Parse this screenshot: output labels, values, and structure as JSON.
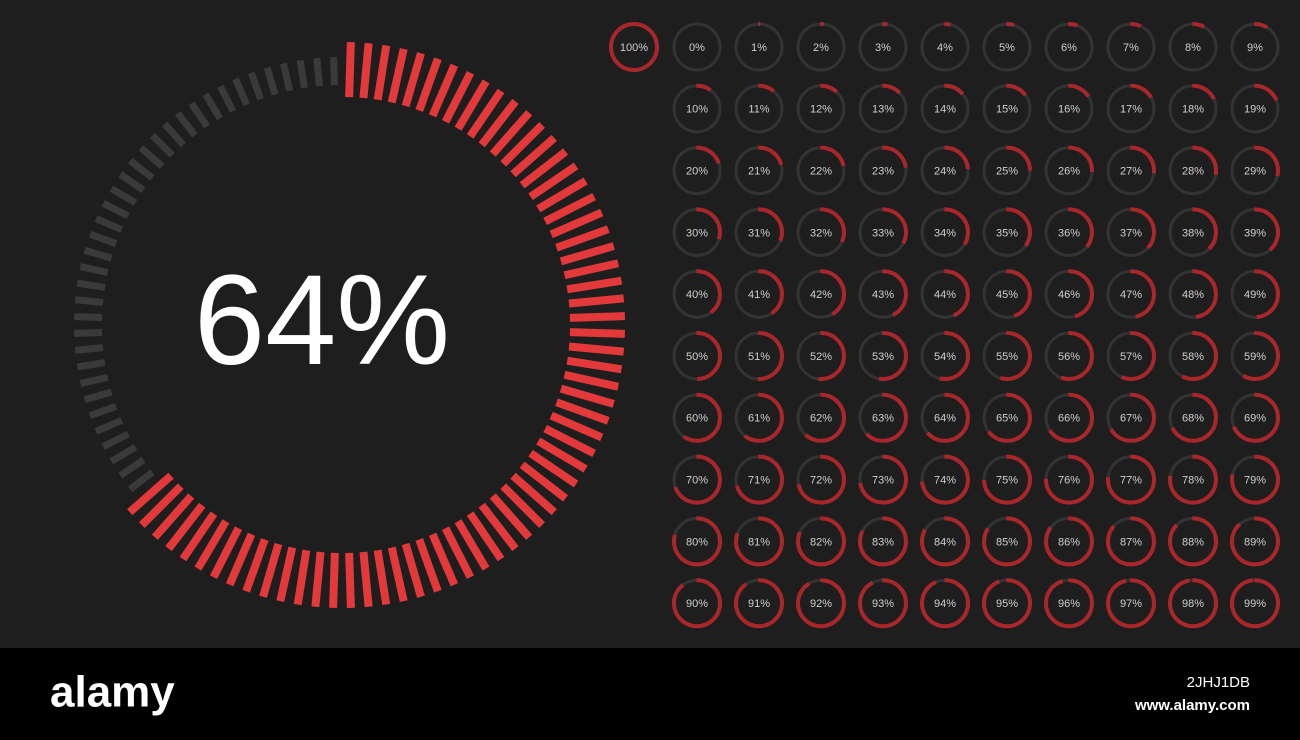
{
  "main_meter": {
    "value": 64,
    "label": "64%"
  },
  "meters": [
    {
      "value": 100,
      "label": "100%"
    },
    {
      "value": 0,
      "label": "0%"
    },
    {
      "value": 1,
      "label": "1%"
    },
    {
      "value": 2,
      "label": "2%"
    },
    {
      "value": 3,
      "label": "3%"
    },
    {
      "value": 4,
      "label": "4%"
    },
    {
      "value": 5,
      "label": "5%"
    },
    {
      "value": 6,
      "label": "6%"
    },
    {
      "value": 7,
      "label": "7%"
    },
    {
      "value": 8,
      "label": "8%"
    },
    {
      "value": 9,
      "label": "9%"
    },
    {
      "value": 10,
      "label": "10%"
    },
    {
      "value": 11,
      "label": "11%"
    },
    {
      "value": 12,
      "label": "12%"
    },
    {
      "value": 13,
      "label": "13%"
    },
    {
      "value": 14,
      "label": "14%"
    },
    {
      "value": 15,
      "label": "15%"
    },
    {
      "value": 16,
      "label": "16%"
    },
    {
      "value": 17,
      "label": "17%"
    },
    {
      "value": 18,
      "label": "18%"
    },
    {
      "value": 19,
      "label": "19%"
    },
    {
      "value": 20,
      "label": "20%"
    },
    {
      "value": 21,
      "label": "21%"
    },
    {
      "value": 22,
      "label": "22%"
    },
    {
      "value": 23,
      "label": "23%"
    },
    {
      "value": 24,
      "label": "24%"
    },
    {
      "value": 25,
      "label": "25%"
    },
    {
      "value": 26,
      "label": "26%"
    },
    {
      "value": 27,
      "label": "27%"
    },
    {
      "value": 28,
      "label": "28%"
    },
    {
      "value": 29,
      "label": "29%"
    },
    {
      "value": 30,
      "label": "30%"
    },
    {
      "value": 31,
      "label": "31%"
    },
    {
      "value": 32,
      "label": "32%"
    },
    {
      "value": 33,
      "label": "33%"
    },
    {
      "value": 34,
      "label": "34%"
    },
    {
      "value": 35,
      "label": "35%"
    },
    {
      "value": 36,
      "label": "36%"
    },
    {
      "value": 37,
      "label": "37%"
    },
    {
      "value": 38,
      "label": "38%"
    },
    {
      "value": 39,
      "label": "39%"
    },
    {
      "value": 40,
      "label": "40%"
    },
    {
      "value": 41,
      "label": "41%"
    },
    {
      "value": 42,
      "label": "42%"
    },
    {
      "value": 43,
      "label": "43%"
    },
    {
      "value": 44,
      "label": "44%"
    },
    {
      "value": 45,
      "label": "45%"
    },
    {
      "value": 46,
      "label": "46%"
    },
    {
      "value": 47,
      "label": "47%"
    },
    {
      "value": 48,
      "label": "48%"
    },
    {
      "value": 49,
      "label": "49%"
    },
    {
      "value": 50,
      "label": "50%"
    },
    {
      "value": 51,
      "label": "51%"
    },
    {
      "value": 52,
      "label": "52%"
    },
    {
      "value": 53,
      "label": "53%"
    },
    {
      "value": 54,
      "label": "54%"
    },
    {
      "value": 55,
      "label": "55%"
    },
    {
      "value": 56,
      "label": "56%"
    },
    {
      "value": 57,
      "label": "57%"
    },
    {
      "value": 58,
      "label": "58%"
    },
    {
      "value": 59,
      "label": "59%"
    },
    {
      "value": 60,
      "label": "60%"
    },
    {
      "value": 61,
      "label": "61%"
    },
    {
      "value": 62,
      "label": "62%"
    },
    {
      "value": 63,
      "label": "63%"
    },
    {
      "value": 64,
      "label": "64%"
    },
    {
      "value": 65,
      "label": "65%"
    },
    {
      "value": 66,
      "label": "66%"
    },
    {
      "value": 67,
      "label": "67%"
    },
    {
      "value": 68,
      "label": "68%"
    },
    {
      "value": 69,
      "label": "69%"
    },
    {
      "value": 70,
      "label": "70%"
    },
    {
      "value": 71,
      "label": "71%"
    },
    {
      "value": 72,
      "label": "72%"
    },
    {
      "value": 73,
      "label": "73%"
    },
    {
      "value": 74,
      "label": "74%"
    },
    {
      "value": 75,
      "label": "75%"
    },
    {
      "value": 76,
      "label": "76%"
    },
    {
      "value": 77,
      "label": "77%"
    },
    {
      "value": 78,
      "label": "78%"
    },
    {
      "value": 79,
      "label": "79%"
    },
    {
      "value": 80,
      "label": "80%"
    },
    {
      "value": 81,
      "label": "81%"
    },
    {
      "value": 82,
      "label": "82%"
    },
    {
      "value": 83,
      "label": "83%"
    },
    {
      "value": 84,
      "label": "84%"
    },
    {
      "value": 85,
      "label": "85%"
    },
    {
      "value": 86,
      "label": "86%"
    },
    {
      "value": 87,
      "label": "87%"
    },
    {
      "value": 88,
      "label": "88%"
    },
    {
      "value": 89,
      "label": "89%"
    },
    {
      "value": 90,
      "label": "90%"
    },
    {
      "value": 91,
      "label": "91%"
    },
    {
      "value": 92,
      "label": "92%"
    },
    {
      "value": 93,
      "label": "93%"
    },
    {
      "value": 94,
      "label": "94%"
    },
    {
      "value": 95,
      "label": "95%"
    },
    {
      "value": 96,
      "label": "96%"
    },
    {
      "value": 97,
      "label": "97%"
    },
    {
      "value": 98,
      "label": "98%"
    },
    {
      "value": 99,
      "label": "99%"
    }
  ],
  "footer": {
    "brand": "alamy",
    "image_id": "2JHJ1DB",
    "url": "www.alamy.com"
  }
}
